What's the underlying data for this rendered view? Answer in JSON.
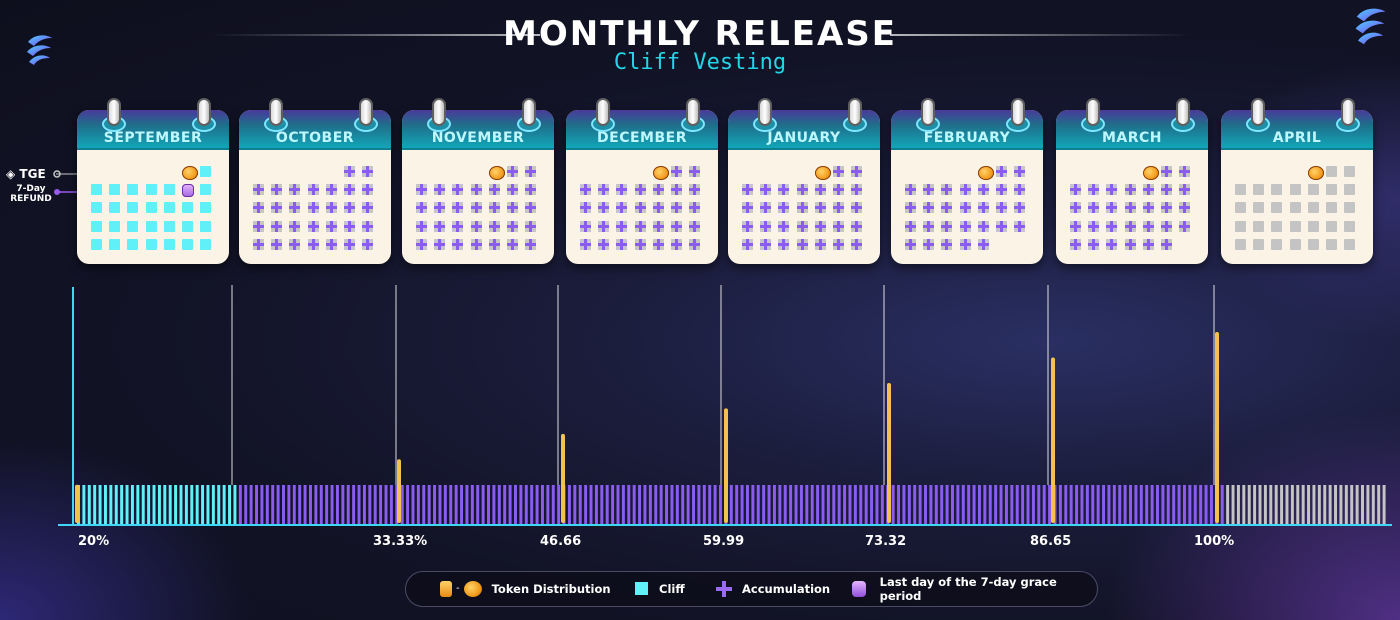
{
  "header": {
    "title": "MONTHLY RELEASE",
    "subtitle": "Cliff Vesting"
  },
  "side_labels": {
    "tge": "TGE",
    "refund_line1": "7-Day",
    "refund_line2": "REFUND"
  },
  "calendars": [
    {
      "month": "SEPTEMBER",
      "cells": [
        "empty",
        "empty",
        "empty",
        "empty",
        "empty",
        "coin",
        "cliff",
        "cliff",
        "cliff",
        "cliff",
        "cliff",
        "cliff",
        "refund",
        "cliff",
        "cliff",
        "cliff",
        "cliff",
        "cliff",
        "cliff",
        "cliff",
        "cliff",
        "cliff",
        "cliff",
        "cliff",
        "cliff",
        "cliff",
        "cliff",
        "cliff",
        "cliff",
        "cliff",
        "cliff",
        "cliff",
        "cliff",
        "cliff",
        "cliff"
      ]
    },
    {
      "month": "OCTOBER",
      "cells": [
        "empty",
        "empty",
        "empty",
        "empty",
        "empty",
        "plus",
        "plus",
        "plus",
        "plus",
        "plus",
        "plus",
        "plus",
        "plus",
        "plus",
        "plus",
        "plus",
        "plus",
        "plus",
        "plus",
        "plus",
        "plus",
        "plus",
        "plus",
        "plus",
        "plus",
        "plus",
        "plus",
        "plus",
        "plus",
        "plus",
        "plus",
        "plus",
        "plus",
        "plus",
        "plus"
      ]
    },
    {
      "month": "NOVEMBER",
      "cells": [
        "empty",
        "empty",
        "empty",
        "empty",
        "coin",
        "plus",
        "plus",
        "plus",
        "plus",
        "plus",
        "plus",
        "plus",
        "plus",
        "plus",
        "plus",
        "plus",
        "plus",
        "plus",
        "plus",
        "plus",
        "plus",
        "plus",
        "plus",
        "plus",
        "plus",
        "plus",
        "plus",
        "plus",
        "plus",
        "plus",
        "plus",
        "plus",
        "plus",
        "plus",
        "plus"
      ]
    },
    {
      "month": "DECEMBER",
      "cells": [
        "empty",
        "empty",
        "empty",
        "empty",
        "coin",
        "plus",
        "plus",
        "plus",
        "plus",
        "plus",
        "plus",
        "plus",
        "plus",
        "plus",
        "plus",
        "plus",
        "plus",
        "plus",
        "plus",
        "plus",
        "plus",
        "plus",
        "plus",
        "plus",
        "plus",
        "plus",
        "plus",
        "plus",
        "plus",
        "plus",
        "plus",
        "plus",
        "plus",
        "plus",
        "plus"
      ]
    },
    {
      "month": "JANUARY",
      "cells": [
        "empty",
        "empty",
        "empty",
        "empty",
        "coin",
        "plus",
        "plus",
        "plus",
        "plus",
        "plus",
        "plus",
        "plus",
        "plus",
        "plus",
        "plus",
        "plus",
        "plus",
        "plus",
        "plus",
        "plus",
        "plus",
        "plus",
        "plus",
        "plus",
        "plus",
        "plus",
        "plus",
        "plus",
        "plus",
        "plus",
        "plus",
        "plus",
        "plus",
        "plus",
        "plus"
      ]
    },
    {
      "month": "FEBRUARY",
      "cells": [
        "empty",
        "empty",
        "empty",
        "empty",
        "coin",
        "plus",
        "plus",
        "plus",
        "plus",
        "plus",
        "plus",
        "plus",
        "plus",
        "plus",
        "plus",
        "plus",
        "plus",
        "plus",
        "plus",
        "plus",
        "plus",
        "plus",
        "plus",
        "plus",
        "plus",
        "plus",
        "plus",
        "plus",
        "plus",
        "plus",
        "plus",
        "plus",
        "plus",
        "empty",
        "empty"
      ]
    },
    {
      "month": "MARCH",
      "cells": [
        "empty",
        "empty",
        "empty",
        "empty",
        "coin",
        "plus",
        "plus",
        "plus",
        "plus",
        "plus",
        "plus",
        "plus",
        "plus",
        "plus",
        "plus",
        "plus",
        "plus",
        "plus",
        "plus",
        "plus",
        "plus",
        "plus",
        "plus",
        "plus",
        "plus",
        "plus",
        "plus",
        "plus",
        "plus",
        "plus",
        "plus",
        "plus",
        "plus",
        "plus",
        "empty"
      ]
    },
    {
      "month": "APRIL",
      "cells": [
        "empty",
        "empty",
        "empty",
        "empty",
        "coin",
        "grey",
        "grey",
        "grey",
        "grey",
        "grey",
        "grey",
        "grey",
        "grey",
        "grey",
        "grey",
        "grey",
        "grey",
        "grey",
        "grey",
        "grey",
        "grey",
        "grey",
        "grey",
        "grey",
        "grey",
        "grey",
        "grey",
        "grey",
        "grey",
        "grey",
        "grey",
        "grey",
        "grey",
        "grey",
        "grey"
      ]
    }
  ],
  "chart_data": {
    "type": "bar",
    "categories": [
      "SEPTEMBER",
      "OCTOBER",
      "NOVEMBER",
      "DECEMBER",
      "JANUARY",
      "FEBRUARY",
      "MARCH",
      "APRIL"
    ],
    "release_percent": [
      20,
      33.33,
      46.66,
      59.99,
      73.32,
      86.65,
      100
    ],
    "tick_labels": [
      "20%",
      "33.33%",
      "46.66",
      "59.99",
      "73.32",
      "86.65",
      "100%"
    ],
    "ylim": [
      0,
      100
    ],
    "daily_strip": {
      "cliff_days": 30,
      "accumulation_days": 183,
      "remaining_days": 30
    },
    "colors": {
      "release": "#f2c14e",
      "cliff": "#5ff0f8",
      "accumulation": "#8a5cf0",
      "remaining": "#c4c4c4",
      "axis": "#3fd7f5"
    }
  },
  "legend": {
    "token_distribution": "Token Distribution",
    "cliff": "Cliff",
    "accumulation": "Accumulation",
    "grace_period": "Last day of the 7-day grace period"
  }
}
